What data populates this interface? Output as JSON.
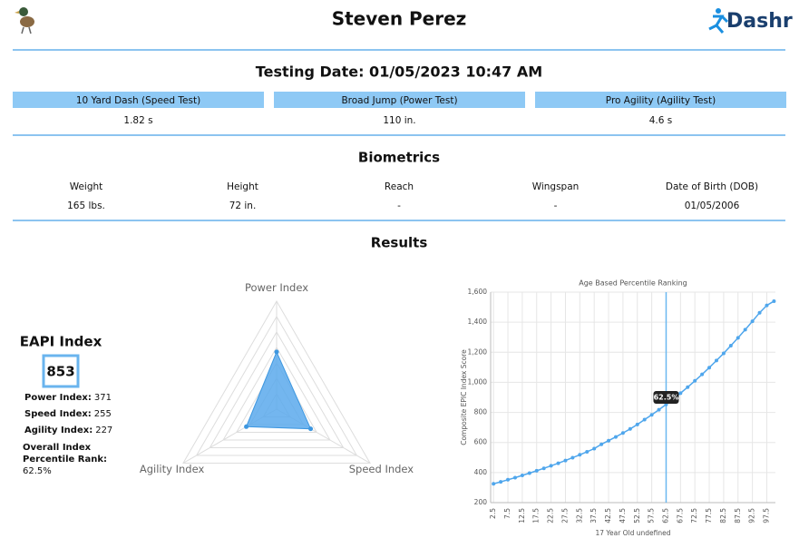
{
  "header": {
    "name": "Steven Perez",
    "brand": "Dashr"
  },
  "testing": {
    "title": "Testing Date: 01/05/2023 10:47 AM",
    "tests": [
      {
        "label": "10 Yard Dash (Speed Test)",
        "value": "1.82 s"
      },
      {
        "label": "Broad Jump (Power Test)",
        "value": "110 in."
      },
      {
        "label": "Pro Agility (Agility Test)",
        "value": "4.6 s"
      }
    ]
  },
  "biometrics": {
    "title": "Biometrics",
    "items": [
      {
        "label": "Weight",
        "value": "165 lbs."
      },
      {
        "label": "Height",
        "value": "72 in."
      },
      {
        "label": "Reach",
        "value": "-"
      },
      {
        "label": "Wingspan",
        "value": "-"
      },
      {
        "label": "Date of Birth (DOB)",
        "value": "01/05/2006"
      }
    ]
  },
  "results": {
    "title": "Results"
  },
  "eapi": {
    "title": "EAPI Index",
    "score": "853",
    "item_labels": [
      "Power Index:",
      "Speed Index:",
      "Agility Index:"
    ],
    "rank_label": [
      "Overall Index",
      "Percentile Rank:"
    ]
  },
  "chart_data": [
    {
      "type": "radar",
      "axes": [
        "Power Index",
        "Speed Index",
        "Agility Index"
      ],
      "values": [
        371,
        255,
        227
      ],
      "color": "#5aa9ec",
      "rlim": [
        0,
        700
      ],
      "rticks": [
        100,
        200,
        300,
        400,
        500,
        600,
        700
      ]
    },
    {
      "type": "line",
      "title": "Age Based Percentile Ranking",
      "x_label": "17 Year Old undefined",
      "y_label": "Composite EPIC Index Score",
      "x": [
        2.5,
        5,
        7.5,
        10,
        12.5,
        15,
        17.5,
        20,
        22.5,
        25,
        27.5,
        30,
        32.5,
        35,
        37.5,
        40,
        42.5,
        45,
        47.5,
        50,
        52.5,
        55,
        57.5,
        60,
        62.5,
        65,
        67.5,
        70,
        72.5,
        75,
        77.5,
        80,
        82.5,
        85,
        87.5,
        90,
        92.5,
        95,
        97.5,
        100
      ],
      "values": [
        325,
        338,
        352,
        366,
        381,
        396,
        412,
        428,
        445,
        462,
        480,
        499,
        518,
        538,
        559,
        588,
        612,
        637,
        663,
        690,
        720,
        752,
        784,
        818,
        853,
        890,
        928,
        968,
        1010,
        1053,
        1098,
        1145,
        1193,
        1244,
        1296,
        1350,
        1406,
        1463,
        1512,
        1540
      ],
      "color": "#4fa6ec",
      "xlim": [
        1.5,
        100.5
      ],
      "ylim": [
        200,
        1600
      ],
      "xticks": [
        2.5,
        7.5,
        12.5,
        17.5,
        22.5,
        27.5,
        32.5,
        37.5,
        42.5,
        47.5,
        52.5,
        57.5,
        62.5,
        67.5,
        72.5,
        77.5,
        82.5,
        87.5,
        92.5,
        97.5
      ],
      "yticks": [
        200,
        400,
        600,
        800,
        {
          "value": 1000,
          "label": "1,000"
        },
        {
          "value": 1200,
          "label": "1,200"
        },
        {
          "value": 1400,
          "label": "1,400"
        },
        {
          "value": 1600,
          "label": "1,600"
        }
      ],
      "grid": true,
      "marker_x": 62.5,
      "marker_label": "62.5%"
    }
  ]
}
